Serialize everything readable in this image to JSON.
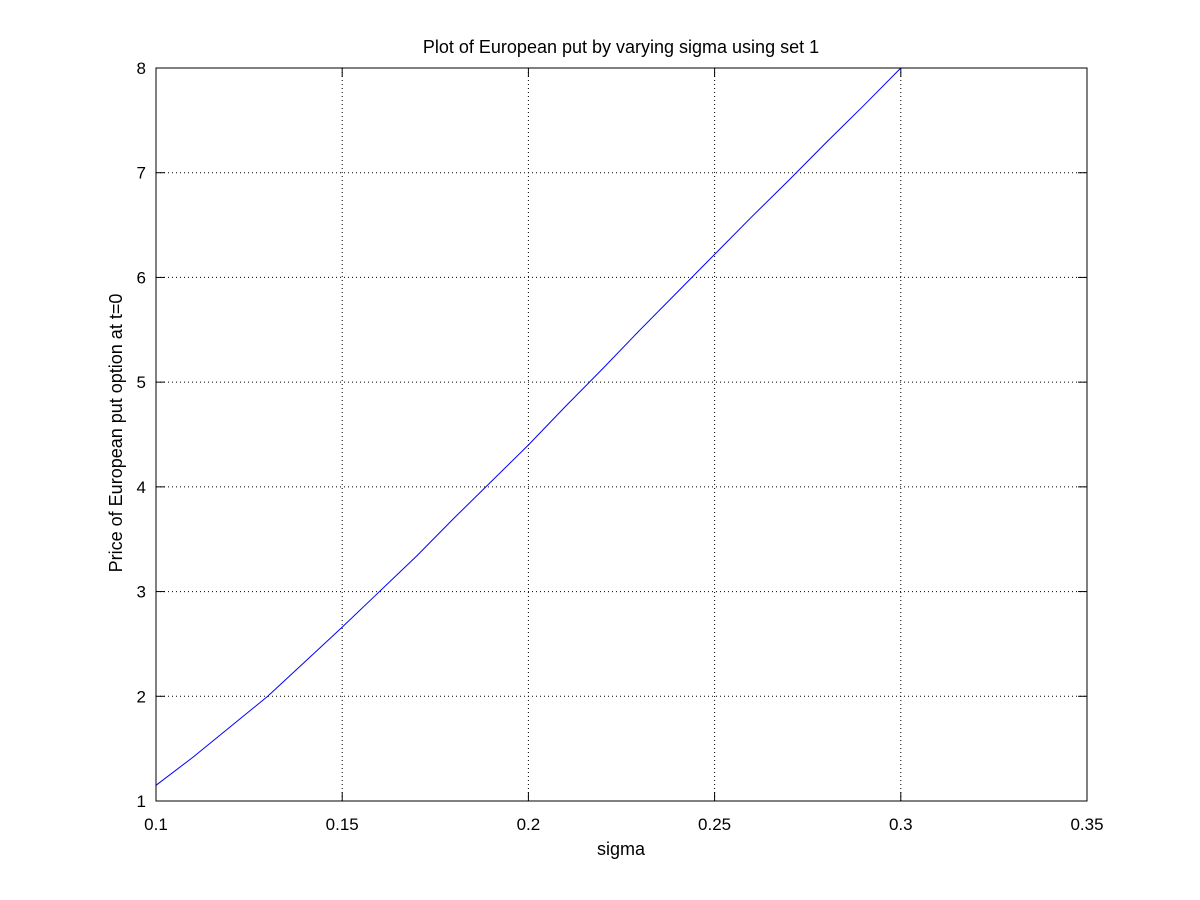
{
  "chart_data": {
    "type": "line",
    "title": "Plot of European put by varying sigma using set 1",
    "xlabel": "sigma",
    "ylabel": "Price of European put option at t=0",
    "xlim": [
      0.1,
      0.35
    ],
    "ylim": [
      1,
      8
    ],
    "xticks": [
      0.1,
      0.15,
      0.2,
      0.25,
      0.3,
      0.35
    ],
    "xtick_labels": [
      "0.1",
      "0.15",
      "0.2",
      "0.25",
      "0.3",
      "0.35"
    ],
    "yticks": [
      1,
      2,
      3,
      4,
      5,
      6,
      7,
      8
    ],
    "ytick_labels": [
      "1",
      "2",
      "3",
      "4",
      "5",
      "6",
      "7",
      "8"
    ],
    "grid": true,
    "series": [
      {
        "color": "#0000ff",
        "x": [
          0.1,
          0.11,
          0.12,
          0.13,
          0.14,
          0.15,
          0.16,
          0.17,
          0.18,
          0.19,
          0.2,
          0.21,
          0.22,
          0.23,
          0.24,
          0.25,
          0.26,
          0.27,
          0.28,
          0.29,
          0.3
        ],
        "y": [
          1.15,
          1.42,
          1.71,
          2.0,
          2.33,
          2.66,
          3.0,
          3.34,
          3.7,
          4.05,
          4.4,
          4.77,
          5.13,
          5.5,
          5.86,
          6.22,
          6.58,
          6.93,
          7.29,
          7.64,
          8.0
        ]
      }
    ]
  }
}
